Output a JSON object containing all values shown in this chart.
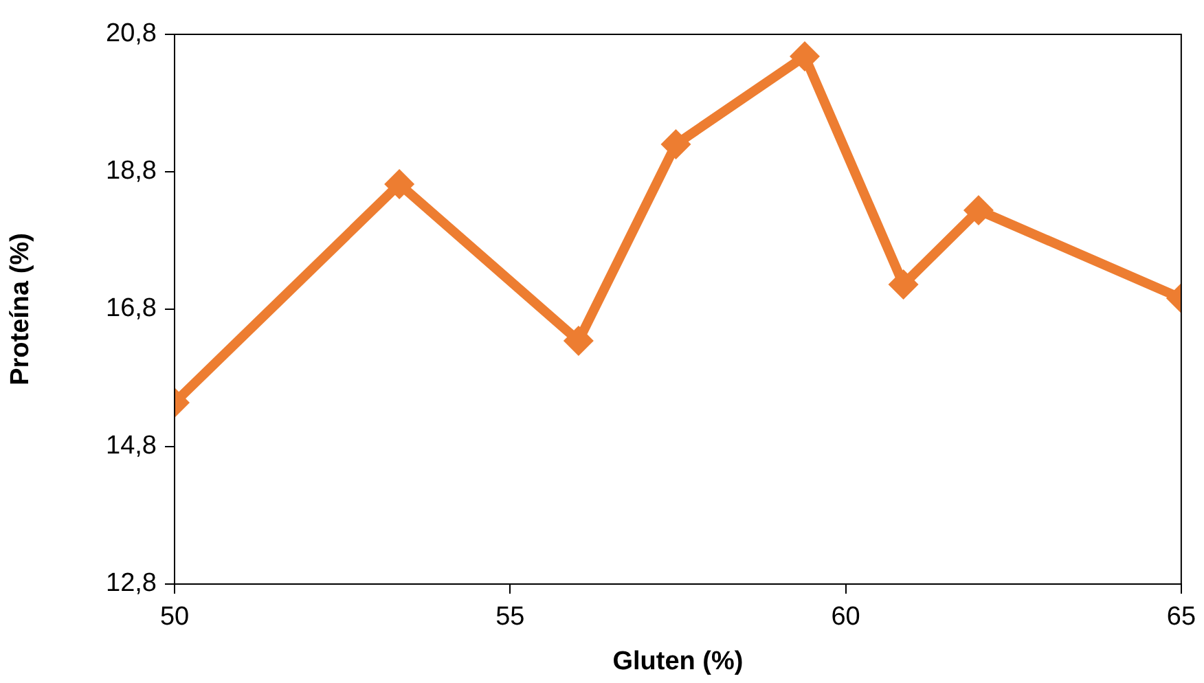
{
  "chart_data": {
    "type": "line",
    "xlabel": "Gluten (%)",
    "ylabel": "Proteína (%)",
    "x": [
      50,
      53.35,
      56.02,
      57.47,
      59.39,
      60.86,
      61.98,
      65
    ],
    "series": [
      {
        "color": "#ed7d31",
        "values": [
          15.44,
          18.62,
          16.34,
          19.2,
          20.48,
          17.16,
          18.24,
          16.96
        ]
      }
    ],
    "xlim": [
      50,
      65
    ],
    "xticks": [
      50,
      55,
      60,
      65
    ],
    "ylim": [
      12.8,
      20.8
    ],
    "yticks": [
      {
        "value": 12.8,
        "label": "12,8"
      },
      {
        "value": 14.8,
        "label": "14,8"
      },
      {
        "value": 16.8,
        "label": "16,8"
      },
      {
        "value": 18.8,
        "label": "18,8"
      },
      {
        "value": 20.8,
        "label": "20,8"
      }
    ],
    "marker": "diamond",
    "line_style": "solid",
    "grid": false,
    "legend": false
  }
}
